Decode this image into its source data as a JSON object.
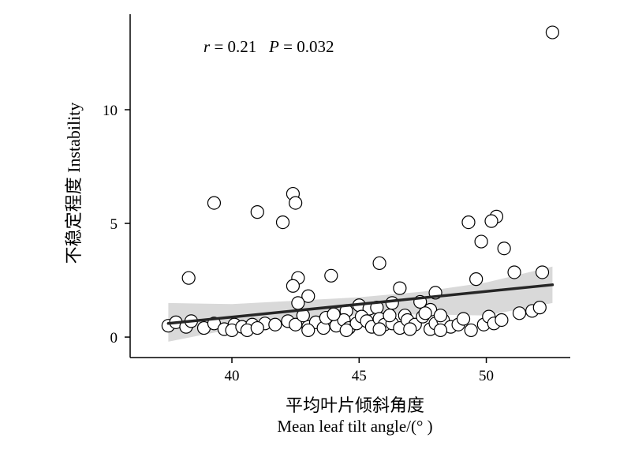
{
  "chart_data": {
    "type": "scatter",
    "ylabel_zh": "不稳定程度",
    "ylabel_en": "Instability",
    "xlabel_zh": "平均叶片倾斜角度",
    "xlabel_en": "Mean leaf tilt angle/(° )",
    "annotation": {
      "r_symbol": "r",
      "r_value": " = 0.21",
      "p_symbol": "P",
      "p_value": " = 0.032"
    },
    "xlim": [
      36.0,
      53.3
    ],
    "ylim": [
      -0.9,
      14.2
    ],
    "x_ticks": [
      40,
      45,
      50
    ],
    "y_ticks": [
      0,
      5,
      10
    ],
    "x_tick_labels": [
      "40",
      "45",
      "50"
    ],
    "y_tick_labels": [
      "0",
      "5",
      "10"
    ],
    "grid": false,
    "regression": {
      "x_start": 37.5,
      "y_start": 0.6,
      "x_end": 52.6,
      "y_end": 2.3
    },
    "confidence_band": {
      "x": [
        37.5,
        40,
        42.5,
        45,
        47.5,
        50,
        52.6
      ],
      "upper": [
        1.5,
        1.45,
        1.6,
        1.75,
        2.0,
        2.4,
        3.1
      ],
      "lower": [
        -0.2,
        0.35,
        0.75,
        0.95,
        1.0,
        0.95,
        1.5
      ]
    },
    "points": [
      [
        52.6,
        13.4
      ],
      [
        42.4,
        6.3
      ],
      [
        42.5,
        5.9
      ],
      [
        39.3,
        5.9
      ],
      [
        41.0,
        5.5
      ],
      [
        42.0,
        5.05
      ],
      [
        49.3,
        5.05
      ],
      [
        50.4,
        5.3
      ],
      [
        50.2,
        5.1
      ],
      [
        49.8,
        4.2
      ],
      [
        50.7,
        3.9
      ],
      [
        45.8,
        3.25
      ],
      [
        51.1,
        2.85
      ],
      [
        52.2,
        2.85
      ],
      [
        38.3,
        2.6
      ],
      [
        42.6,
        2.6
      ],
      [
        43.9,
        2.7
      ],
      [
        49.6,
        2.55
      ],
      [
        42.4,
        2.25
      ],
      [
        46.6,
        2.15
      ],
      [
        48.0,
        1.95
      ],
      [
        43.0,
        1.8
      ],
      [
        42.6,
        1.5
      ],
      [
        46.3,
        1.5
      ],
      [
        47.4,
        1.55
      ],
      [
        47.8,
        1.2
      ],
      [
        45.0,
        1.4
      ],
      [
        45.4,
        1.25
      ],
      [
        44.5,
        1.15
      ],
      [
        45.7,
        1.3
      ],
      [
        46.8,
        0.95
      ],
      [
        51.3,
        1.05
      ],
      [
        51.8,
        1.15
      ],
      [
        52.1,
        1.3
      ],
      [
        37.5,
        0.5
      ],
      [
        37.8,
        0.65
      ],
      [
        38.2,
        0.45
      ],
      [
        38.4,
        0.7
      ],
      [
        38.9,
        0.4
      ],
      [
        39.3,
        0.6
      ],
      [
        39.7,
        0.35
      ],
      [
        40.1,
        0.55
      ],
      [
        40.0,
        0.3
      ],
      [
        40.4,
        0.45
      ],
      [
        40.8,
        0.55
      ],
      [
        41.3,
        0.6
      ],
      [
        41.7,
        0.55
      ],
      [
        42.2,
        0.7
      ],
      [
        42.5,
        0.55
      ],
      [
        43.0,
        0.45
      ],
      [
        43.3,
        0.65
      ],
      [
        43.6,
        0.4
      ],
      [
        43.7,
        0.85
      ],
      [
        44.1,
        0.5
      ],
      [
        44.4,
        0.75
      ],
      [
        44.6,
        0.4
      ],
      [
        44.9,
        0.6
      ],
      [
        45.1,
        0.9
      ],
      [
        45.3,
        0.7
      ],
      [
        45.5,
        0.45
      ],
      [
        45.8,
        0.8
      ],
      [
        46.0,
        0.55
      ],
      [
        46.3,
        0.6
      ],
      [
        46.6,
        0.4
      ],
      [
        46.9,
        0.75
      ],
      [
        47.2,
        0.55
      ],
      [
        47.5,
        0.9
      ],
      [
        47.8,
        0.35
      ],
      [
        48.0,
        0.6
      ],
      [
        48.3,
        0.75
      ],
      [
        48.6,
        0.45
      ],
      [
        48.9,
        0.55
      ],
      [
        49.1,
        0.8
      ],
      [
        49.4,
        0.3
      ],
      [
        49.9,
        0.55
      ],
      [
        50.1,
        0.9
      ],
      [
        50.3,
        0.6
      ],
      [
        50.6,
        0.75
      ],
      [
        40.6,
        0.3
      ],
      [
        41.0,
        0.4
      ],
      [
        43.0,
        0.3
      ],
      [
        44.5,
        0.3
      ],
      [
        45.8,
        0.35
      ],
      [
        47.0,
        0.35
      ],
      [
        48.2,
        0.3
      ],
      [
        46.2,
        0.95
      ],
      [
        42.8,
        0.95
      ],
      [
        44.0,
        1.0
      ],
      [
        47.6,
        1.05
      ],
      [
        48.2,
        0.95
      ]
    ]
  }
}
